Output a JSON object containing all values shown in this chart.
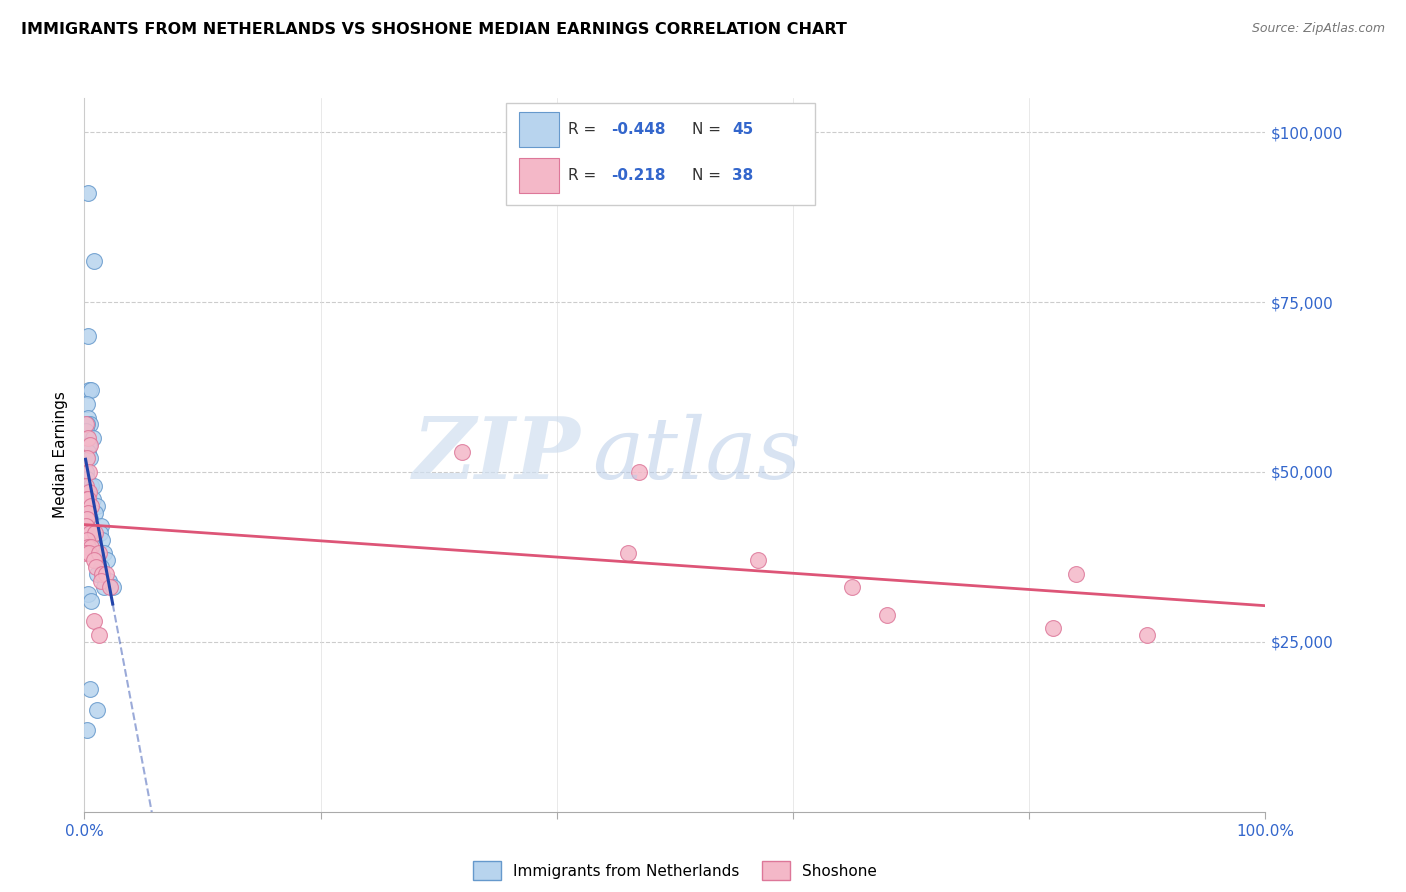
{
  "title": "IMMIGRANTS FROM NETHERLANDS VS SHOSHONE MEDIAN EARNINGS CORRELATION CHART",
  "source": "Source: ZipAtlas.com",
  "ylabel": "Median Earnings",
  "yticks": [
    0,
    25000,
    50000,
    75000,
    100000
  ],
  "ytick_labels": [
    "",
    "$25,000",
    "$50,000",
    "$75,000",
    "$100,000"
  ],
  "series1_label": "Immigrants from Netherlands",
  "series2_label": "Shoshone",
  "series1_color": "#b8d4ee",
  "series2_color": "#f4b8c8",
  "series1_edge": "#6699cc",
  "series2_edge": "#dd7799",
  "trend1_color": "#2244aa",
  "trend2_color": "#dd5577",
  "R1": -0.448,
  "N1": 45,
  "R2": -0.218,
  "N2": 38,
  "xlim": [
    0,
    1
  ],
  "ylim": [
    0,
    105000
  ],
  "watermark_zip": "ZIP",
  "watermark_atlas": "atlas",
  "blue_dots": [
    [
      0.003,
      91000
    ],
    [
      0.008,
      81000
    ],
    [
      0.003,
      70000
    ],
    [
      0.004,
      62000
    ],
    [
      0.006,
      62000
    ],
    [
      0.002,
      60000
    ],
    [
      0.003,
      58000
    ],
    [
      0.005,
      57000
    ],
    [
      0.002,
      57000
    ],
    [
      0.001,
      56000
    ],
    [
      0.007,
      55000
    ],
    [
      0.004,
      54000
    ],
    [
      0.003,
      53000
    ],
    [
      0.002,
      52000
    ],
    [
      0.005,
      52000
    ],
    [
      0.001,
      50000
    ],
    [
      0.002,
      49000
    ],
    [
      0.006,
      48000
    ],
    [
      0.008,
      48000
    ],
    [
      0.001,
      47000
    ],
    [
      0.003,
      47000
    ],
    [
      0.004,
      46000
    ],
    [
      0.007,
      46000
    ],
    [
      0.002,
      45000
    ],
    [
      0.011,
      45000
    ],
    [
      0.009,
      44000
    ],
    [
      0.003,
      43000
    ],
    [
      0.005,
      43000
    ],
    [
      0.001,
      42000
    ],
    [
      0.014,
      42000
    ],
    [
      0.013,
      41000
    ],
    [
      0.015,
      40000
    ],
    [
      0.007,
      39000
    ],
    [
      0.017,
      38000
    ],
    [
      0.019,
      37000
    ],
    [
      0.014,
      36000
    ],
    [
      0.011,
      35000
    ],
    [
      0.021,
      34000
    ],
    [
      0.017,
      33000
    ],
    [
      0.024,
      33000
    ],
    [
      0.003,
      32000
    ],
    [
      0.006,
      31000
    ],
    [
      0.005,
      18000
    ],
    [
      0.011,
      15000
    ],
    [
      0.002,
      12000
    ]
  ],
  "pink_dots": [
    [
      0.001,
      57000
    ],
    [
      0.003,
      55000
    ],
    [
      0.005,
      54000
    ],
    [
      0.002,
      52000
    ],
    [
      0.004,
      50000
    ],
    [
      0.001,
      48000
    ],
    [
      0.004,
      47000
    ],
    [
      0.002,
      46000
    ],
    [
      0.003,
      46000
    ],
    [
      0.006,
      45000
    ],
    [
      0.003,
      44000
    ],
    [
      0.002,
      43000
    ],
    [
      0.001,
      42000
    ],
    [
      0.005,
      41000
    ],
    [
      0.009,
      41000
    ],
    [
      0.002,
      40000
    ],
    [
      0.003,
      39000
    ],
    [
      0.006,
      39000
    ],
    [
      0.001,
      38000
    ],
    [
      0.004,
      38000
    ],
    [
      0.012,
      38000
    ],
    [
      0.008,
      37000
    ],
    [
      0.01,
      36000
    ],
    [
      0.015,
      35000
    ],
    [
      0.018,
      35000
    ],
    [
      0.014,
      34000
    ],
    [
      0.022,
      33000
    ],
    [
      0.008,
      28000
    ],
    [
      0.012,
      26000
    ],
    [
      0.32,
      53000
    ],
    [
      0.47,
      50000
    ],
    [
      0.46,
      38000
    ],
    [
      0.57,
      37000
    ],
    [
      0.65,
      33000
    ],
    [
      0.84,
      35000
    ],
    [
      0.68,
      29000
    ],
    [
      0.82,
      27000
    ],
    [
      0.9,
      26000
    ]
  ]
}
